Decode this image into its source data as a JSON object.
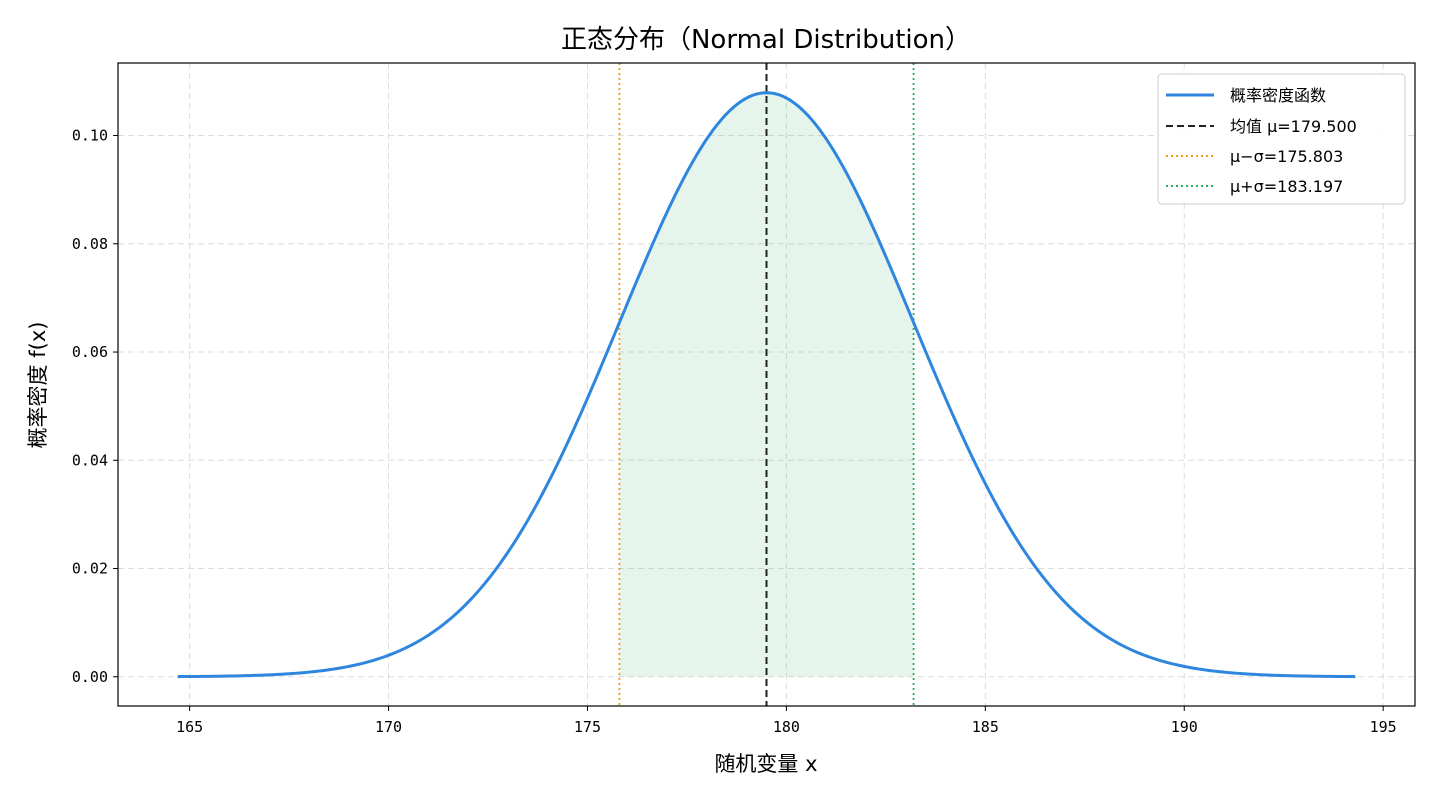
{
  "chart_data": {
    "type": "line",
    "title": "正态分布（Normal Distribution）",
    "xlabel": "随机变量 x",
    "ylabel": "概率密度 f(x)",
    "xlim": [
      163.2,
      195.8
    ],
    "ylim": [
      -0.0054,
      0.1134
    ],
    "xticks": [
      165,
      170,
      175,
      180,
      185,
      190,
      195
    ],
    "xtick_labels": [
      "165",
      "170",
      "175",
      "180",
      "185",
      "190",
      "195"
    ],
    "yticks": [
      0.0,
      0.02,
      0.04,
      0.06,
      0.08,
      0.1
    ],
    "ytick_labels": [
      "0.00",
      "0.02",
      "0.04",
      "0.06",
      "0.08",
      "0.10"
    ],
    "grid": true,
    "legend_position": "top-right",
    "distribution": {
      "mean": 179.5,
      "std": 3.697,
      "x_range": [
        164.7,
        194.3
      ]
    },
    "shaded_interval": [
      175.803,
      183.197
    ],
    "series": [
      {
        "name": "概率密度函数",
        "kind": "curve",
        "color": "#2e86de",
        "style": "solid"
      },
      {
        "name": "均值 μ=179.500",
        "kind": "vline",
        "x": 179.5,
        "color": "#222222",
        "style": "dashed"
      },
      {
        "name": "μ−σ=175.803",
        "kind": "vline",
        "x": 175.803,
        "color": "#f39c12",
        "style": "dotted"
      },
      {
        "name": "μ+σ=183.197",
        "kind": "vline",
        "x": 183.197,
        "color": "#27ae60",
        "style": "dotted"
      }
    ],
    "fill_color": "#27ae60"
  }
}
